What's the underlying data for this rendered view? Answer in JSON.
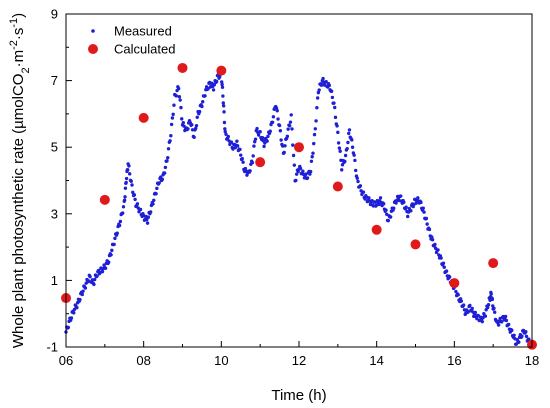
{
  "chart_data": {
    "type": "scatter",
    "title": "",
    "xlabel": "Time (h)",
    "ylabel": {
      "pre": "Whole plant photosynthetic rate (µmolCO",
      "sub": "2",
      "mid1": "·m",
      "sup1": "-2",
      "mid2": "·s",
      "sup2": "-1",
      "post": ")"
    },
    "xlim": [
      6,
      18
    ],
    "ylim": [
      -1,
      9
    ],
    "x_ticks": [
      {
        "value": 6,
        "label": "06"
      },
      {
        "value": 8,
        "label": "08"
      },
      {
        "value": 10,
        "label": "10"
      },
      {
        "value": 12,
        "label": "12"
      },
      {
        "value": 14,
        "label": "14"
      },
      {
        "value": 16,
        "label": "16"
      },
      {
        "value": 18,
        "label": "18"
      }
    ],
    "y_ticks": [
      {
        "value": -1,
        "label": "-1"
      },
      {
        "value": 1,
        "label": "1"
      },
      {
        "value": 3,
        "label": "3"
      },
      {
        "value": 5,
        "label": "5"
      },
      {
        "value": 7,
        "label": "7"
      },
      {
        "value": 9,
        "label": "9"
      }
    ],
    "legend_position": "top-left",
    "grid": false,
    "series": [
      {
        "name": "Measured",
        "marker": "small-dot",
        "color": "#1f1fd6",
        "points": [
          [
            6.0,
            -0.55
          ],
          [
            6.1,
            -0.2
          ],
          [
            6.2,
            0.1
          ],
          [
            6.3,
            0.3
          ],
          [
            6.4,
            0.6
          ],
          [
            6.5,
            0.85
          ],
          [
            6.6,
            1.1
          ],
          [
            6.7,
            0.9
          ],
          [
            6.8,
            1.2
          ],
          [
            6.9,
            1.3
          ],
          [
            7.0,
            1.4
          ],
          [
            7.1,
            1.6
          ],
          [
            7.2,
            2.0
          ],
          [
            7.3,
            2.4
          ],
          [
            7.4,
            2.8
          ],
          [
            7.5,
            3.3
          ],
          [
            7.55,
            4.0
          ],
          [
            7.6,
            4.5
          ],
          [
            7.7,
            3.8
          ],
          [
            7.8,
            3.3
          ],
          [
            7.9,
            3.1
          ],
          [
            8.0,
            2.9
          ],
          [
            8.1,
            2.8
          ],
          [
            8.2,
            3.2
          ],
          [
            8.3,
            3.6
          ],
          [
            8.4,
            4.0
          ],
          [
            8.5,
            4.1
          ],
          [
            8.6,
            4.6
          ],
          [
            8.7,
            5.4
          ],
          [
            8.8,
            6.5
          ],
          [
            8.9,
            6.8
          ],
          [
            9.0,
            5.7
          ],
          [
            9.1,
            5.5
          ],
          [
            9.2,
            5.8
          ],
          [
            9.3,
            5.3
          ],
          [
            9.4,
            6.0
          ],
          [
            9.5,
            6.3
          ],
          [
            9.6,
            6.7
          ],
          [
            9.7,
            6.9
          ],
          [
            9.8,
            6.8
          ],
          [
            9.9,
            7.1
          ],
          [
            10.0,
            7.2
          ],
          [
            10.05,
            6.4
          ],
          [
            10.1,
            5.4
          ],
          [
            10.2,
            5.2
          ],
          [
            10.3,
            5.0
          ],
          [
            10.4,
            5.1
          ],
          [
            10.5,
            4.8
          ],
          [
            10.6,
            4.3
          ],
          [
            10.7,
            4.2
          ],
          [
            10.8,
            4.6
          ],
          [
            10.9,
            5.5
          ],
          [
            11.0,
            5.4
          ],
          [
            11.1,
            5.1
          ],
          [
            11.2,
            5.3
          ],
          [
            11.3,
            5.7
          ],
          [
            11.4,
            6.3
          ],
          [
            11.5,
            5.6
          ],
          [
            11.6,
            4.8
          ],
          [
            11.7,
            5.4
          ],
          [
            11.8,
            5.9
          ],
          [
            11.9,
            4.0
          ],
          [
            12.0,
            4.4
          ],
          [
            12.1,
            4.2
          ],
          [
            12.2,
            4.1
          ],
          [
            12.3,
            4.3
          ],
          [
            12.4,
            5.3
          ],
          [
            12.5,
            6.7
          ],
          [
            12.6,
            7.0
          ],
          [
            12.7,
            6.9
          ],
          [
            12.8,
            6.8
          ],
          [
            12.9,
            6.3
          ],
          [
            13.0,
            5.4
          ],
          [
            13.1,
            4.4
          ],
          [
            13.2,
            4.7
          ],
          [
            13.3,
            5.5
          ],
          [
            13.4,
            4.9
          ],
          [
            13.5,
            4.0
          ],
          [
            13.6,
            3.7
          ],
          [
            13.7,
            3.5
          ],
          [
            13.8,
            3.4
          ],
          [
            13.9,
            3.3
          ],
          [
            14.0,
            3.3
          ],
          [
            14.1,
            3.4
          ],
          [
            14.2,
            3.2
          ],
          [
            14.3,
            2.8
          ],
          [
            14.4,
            3.1
          ],
          [
            14.5,
            3.4
          ],
          [
            14.6,
            3.5
          ],
          [
            14.7,
            3.3
          ],
          [
            14.8,
            3.0
          ],
          [
            14.9,
            3.2
          ],
          [
            15.0,
            3.4
          ],
          [
            15.1,
            3.4
          ],
          [
            15.2,
            3.1
          ],
          [
            15.3,
            2.7
          ],
          [
            15.4,
            2.3
          ],
          [
            15.5,
            2.0
          ],
          [
            15.6,
            1.8
          ],
          [
            15.7,
            1.5
          ],
          [
            15.8,
            1.2
          ],
          [
            15.9,
            1.0
          ],
          [
            16.0,
            0.8
          ],
          [
            16.1,
            0.5
          ],
          [
            16.2,
            0.3
          ],
          [
            16.3,
            0.0
          ],
          [
            16.4,
            0.2
          ],
          [
            16.5,
            0.0
          ],
          [
            16.6,
            -0.1
          ],
          [
            16.7,
            -0.2
          ],
          [
            16.8,
            0.0
          ],
          [
            16.9,
            0.4
          ],
          [
            16.95,
            0.6
          ],
          [
            17.0,
            0.2
          ],
          [
            17.1,
            -0.3
          ],
          [
            17.2,
            -0.2
          ],
          [
            17.3,
            -0.1
          ],
          [
            17.4,
            -0.4
          ],
          [
            17.5,
            -0.6
          ],
          [
            17.6,
            -0.9
          ],
          [
            17.7,
            -0.7
          ],
          [
            17.8,
            -0.5
          ],
          [
            17.9,
            -0.8
          ],
          [
            18.0,
            -1.0
          ]
        ]
      },
      {
        "name": "Calculated",
        "marker": "large-dot",
        "color": "#e01a1a",
        "points": [
          [
            6.0,
            0.47
          ],
          [
            7.0,
            3.42
          ],
          [
            8.0,
            5.88
          ],
          [
            9.0,
            7.38
          ],
          [
            10.0,
            7.3
          ],
          [
            11.0,
            4.55
          ],
          [
            12.0,
            5.0
          ],
          [
            13.0,
            3.82
          ],
          [
            14.0,
            2.52
          ],
          [
            15.0,
            2.08
          ],
          [
            16.0,
            0.92
          ],
          [
            17.0,
            1.52
          ],
          [
            18.0,
            -0.93
          ]
        ]
      }
    ]
  }
}
